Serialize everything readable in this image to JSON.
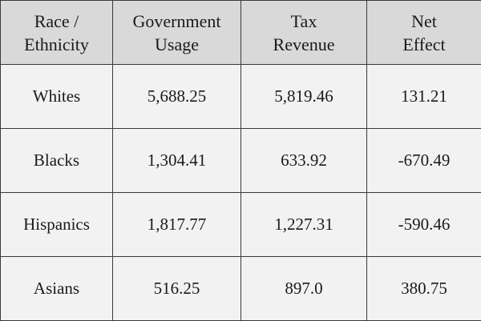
{
  "chart_data": {
    "type": "table",
    "columns": [
      [
        "Race /",
        "Ethnicity"
      ],
      [
        "Government",
        "Usage"
      ],
      [
        "Tax",
        "Revenue"
      ],
      [
        "Net",
        "Effect"
      ]
    ],
    "rows": [
      [
        "Whites",
        "5,688.25",
        "5,819.46",
        "131.21"
      ],
      [
        "Blacks",
        "1,304.41",
        "633.92",
        "-670.49"
      ],
      [
        "Hispanics",
        "1,817.77",
        "1,227.31",
        "-590.46"
      ],
      [
        "Asians",
        "516.25",
        "897.0",
        "380.75"
      ]
    ]
  },
  "colors": {
    "header_background": "#d9d9d9",
    "body_background": "#f2f2f2",
    "border": "#3a3a3a",
    "text": "#1a1a1a"
  }
}
